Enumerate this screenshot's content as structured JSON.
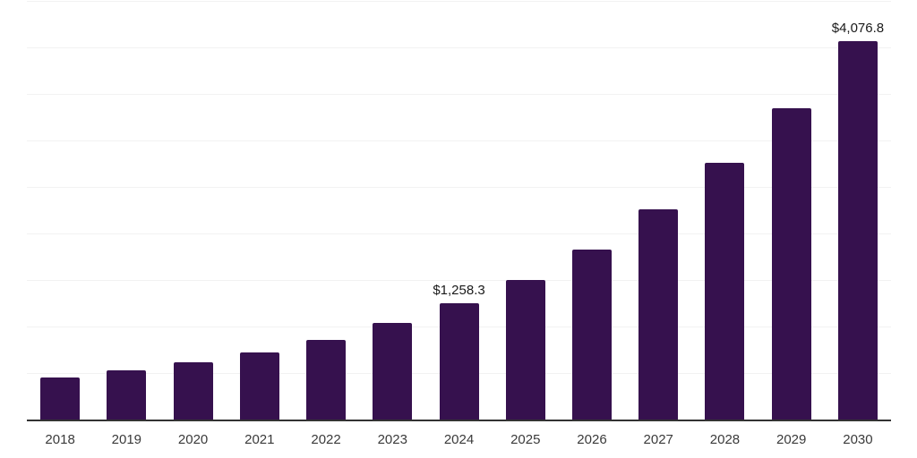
{
  "chart_data": {
    "type": "bar",
    "title": "",
    "xlabel": "",
    "ylabel": "",
    "categories": [
      "2018",
      "2019",
      "2020",
      "2021",
      "2022",
      "2023",
      "2024",
      "2025",
      "2026",
      "2027",
      "2028",
      "2029",
      "2030"
    ],
    "values": [
      460,
      540,
      628,
      730,
      868,
      1047,
      1258.3,
      1505,
      1840,
      2267,
      2770,
      3360,
      4076.8
    ],
    "data_labels": {
      "2024": "$1,258.3",
      "2030": "$4,076.8"
    },
    "ylim": [
      0,
      4500
    ],
    "gridline_interval": 500,
    "grid": true,
    "legend": "none",
    "colors": {
      "bar": "#36114e",
      "axis_line": "#333333",
      "gridline": "#f2f2f2",
      "tick_label": "#3a3a3a",
      "data_label": "#1a1a1a",
      "background": "#ffffff"
    }
  }
}
